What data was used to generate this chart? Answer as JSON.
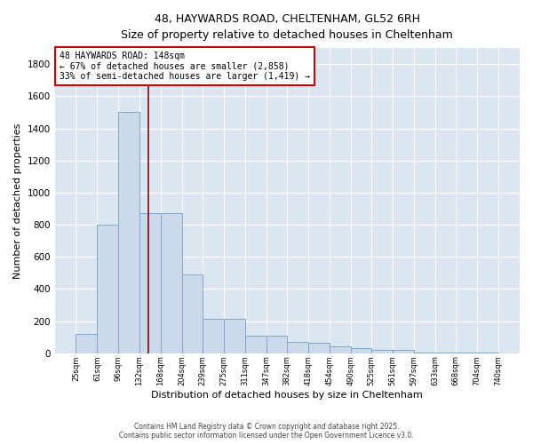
{
  "title_line1": "48, HAYWARDS ROAD, CHELTENHAM, GL52 6RH",
  "title_line2": "Size of property relative to detached houses in Cheltenham",
  "xlabel": "Distribution of detached houses by size in Cheltenham",
  "ylabel": "Number of detached properties",
  "bar_color": "#ccd9ea",
  "bar_edge_color": "#7fa8cc",
  "background_color": "#dce6f0",
  "grid_color": "#ffffff",
  "vline_color": "#990000",
  "vline_x": 148,
  "annotation_text": "48 HAYWARDS ROAD: 148sqm\n← 67% of detached houses are smaller (2,858)\n33% of semi-detached houses are larger (1,419) →",
  "annotation_box_color": "#ffffff",
  "annotation_border_color": "#cc0000",
  "bin_edges": [
    25,
    61,
    96,
    132,
    168,
    204,
    239,
    275,
    311,
    347,
    382,
    418,
    454,
    490,
    525,
    561,
    597,
    633,
    668,
    704,
    740
  ],
  "bar_heights": [
    120,
    800,
    1500,
    870,
    870,
    490,
    215,
    215,
    110,
    110,
    70,
    65,
    45,
    30,
    20,
    18,
    5,
    5,
    3,
    3,
    12
  ],
  "ylim": [
    0,
    1900
  ],
  "yticks": [
    0,
    200,
    400,
    600,
    800,
    1000,
    1200,
    1400,
    1600,
    1800
  ],
  "copyright_text": "Contains HM Land Registry data © Crown copyright and database right 2025.\nContains public sector information licensed under the Open Government Licence v3.0.",
  "figsize": [
    6.0,
    5.0
  ],
  "dpi": 100
}
